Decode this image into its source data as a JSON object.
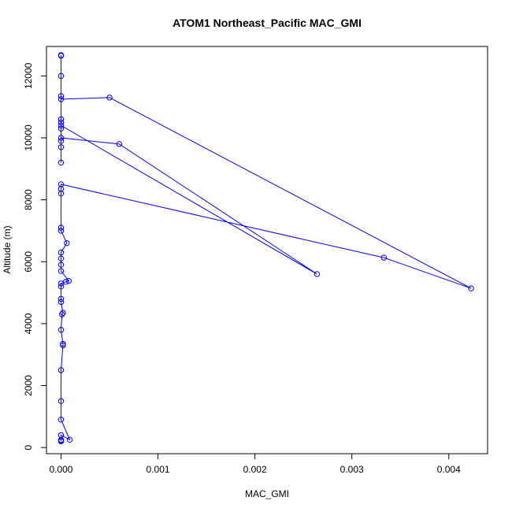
{
  "chart_data": {
    "type": "line",
    "title": "ATOM1 Northeast_Pacific MAC_GMI",
    "xlabel": "MAC_GMI",
    "ylabel": "Altitude (m)",
    "xlim": [
      -0.00015,
      0.0044
    ],
    "ylim": [
      -200,
      12950
    ],
    "x_ticks": [
      0,
      0.001,
      0.002,
      0.003,
      0.004
    ],
    "x_tick_labels": [
      "0.000",
      "0.001",
      "0.002",
      "0.003",
      "0.004"
    ],
    "y_ticks": [
      0,
      2000,
      4000,
      6000,
      8000,
      10000,
      12000
    ],
    "y_tick_labels": [
      "0",
      "2000",
      "4000",
      "6000",
      "8000",
      "10000",
      "12000"
    ],
    "grid": false,
    "series": [
      {
        "color": "#0000ff",
        "marker": "open-circle",
        "points": [
          [
            0.0,
            200
          ],
          [
            0.0,
            220
          ],
          [
            0.0,
            250
          ],
          [
            0.0,
            400
          ],
          [
            9e-05,
            250
          ],
          [
            0.0,
            900
          ],
          [
            0.0,
            1500
          ],
          [
            0.0,
            2500
          ],
          [
            2e-05,
            3300
          ],
          [
            2e-05,
            3350
          ],
          [
            0.0,
            3800
          ],
          [
            1e-05,
            4300
          ],
          [
            2e-05,
            4350
          ],
          [
            0.0,
            4700
          ],
          [
            0.0,
            4800
          ],
          [
            0.0,
            5200
          ],
          [
            0.0,
            5300
          ],
          [
            5e-05,
            5350
          ],
          [
            8e-05,
            5380
          ],
          [
            0.0,
            5700
          ],
          [
            0.0,
            5900
          ],
          [
            0.0,
            6100
          ],
          [
            0.0,
            6300
          ],
          [
            6e-05,
            6600
          ],
          [
            0.0,
            7000
          ],
          [
            0.0,
            7100
          ],
          [
            0.0,
            8200
          ],
          [
            0.0,
            8350
          ],
          [
            0.0,
            8500
          ],
          [
            0.00333,
            6130
          ],
          [
            0.00423,
            5140
          ],
          [
            0.0005,
            11300
          ],
          [
            0.0,
            11250
          ],
          [
            0.0,
            11350
          ],
          [
            0.0,
            10600
          ],
          [
            0.0,
            10400
          ],
          [
            0.00264,
            5600
          ],
          [
            0.0006,
            9800
          ],
          [
            0.0,
            10000
          ],
          [
            0.0,
            9700
          ],
          [
            0.0,
            9200
          ],
          [
            0.0,
            9900
          ],
          [
            0.0,
            10300
          ],
          [
            0.0,
            10500
          ],
          [
            0.0,
            12000
          ],
          [
            0.0,
            12650
          ],
          [
            0.0,
            12670
          ]
        ]
      }
    ]
  }
}
